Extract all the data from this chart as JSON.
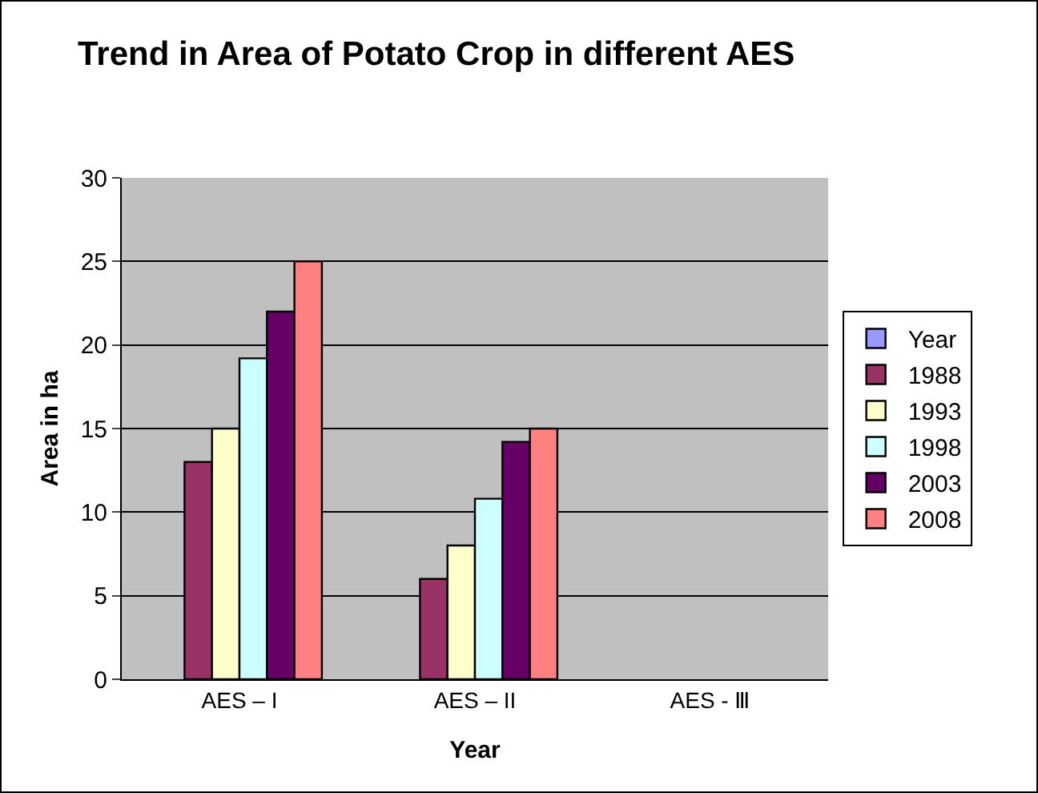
{
  "chart_data": {
    "type": "bar",
    "title": "Trend in Area of Potato Crop in different AES",
    "xlabel": "Year",
    "ylabel": "Area in ha",
    "categories": [
      "AES – I",
      "AES – II",
      "AES - Ⅲ"
    ],
    "series": [
      {
        "name": "Year",
        "color": "#9999ff",
        "values": [
          null,
          null,
          null
        ]
      },
      {
        "name": "1988",
        "color": "#993366",
        "values": [
          13,
          6,
          null
        ]
      },
      {
        "name": "1993",
        "color": "#ffffcc",
        "values": [
          15,
          8,
          null
        ]
      },
      {
        "name": "1998",
        "color": "#ccffff",
        "values": [
          19.2,
          10.8,
          null
        ]
      },
      {
        "name": "2003",
        "color": "#660066",
        "values": [
          22,
          14.2,
          null
        ]
      },
      {
        "name": "2008",
        "color": "#ff8080",
        "values": [
          25,
          15,
          null
        ]
      }
    ],
    "ylim": [
      0,
      30
    ],
    "yticks": [
      0,
      5,
      10,
      15,
      20,
      25,
      30
    ],
    "grid": "y",
    "legend": "right"
  }
}
